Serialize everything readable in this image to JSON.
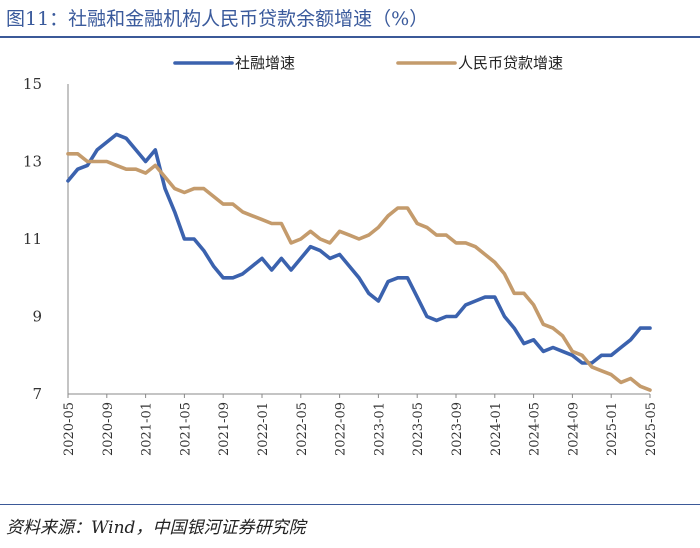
{
  "title": "图11：社融和金融机构人民币贷款余额增速（%）",
  "source": "资料来源：Wind，中国银河证券研究院",
  "chart_data": {
    "type": "line",
    "title": "",
    "xlabel": "",
    "ylabel": "",
    "ylim": [
      7,
      15
    ],
    "yticks": [
      7,
      9,
      11,
      13,
      15
    ],
    "grid": false,
    "legend": "top",
    "x": [
      "2020-05",
      "2020-06",
      "2020-07",
      "2020-08",
      "2020-09",
      "2020-10",
      "2020-11",
      "2020-12",
      "2021-01",
      "2021-02",
      "2021-03",
      "2021-04",
      "2021-05",
      "2021-06",
      "2021-07",
      "2021-08",
      "2021-09",
      "2021-10",
      "2021-11",
      "2021-12",
      "2022-01",
      "2022-02",
      "2022-03",
      "2022-04",
      "2022-05",
      "2022-06",
      "2022-07",
      "2022-08",
      "2022-09",
      "2022-10",
      "2022-11",
      "2022-12",
      "2023-01",
      "2023-02",
      "2023-03",
      "2023-04",
      "2023-05",
      "2023-06",
      "2023-07",
      "2023-08",
      "2023-09",
      "2023-10",
      "2023-11",
      "2023-12",
      "2024-01",
      "2024-02",
      "2024-03",
      "2024-04",
      "2024-05",
      "2024-06",
      "2024-07",
      "2024-08",
      "2024-09",
      "2024-10",
      "2024-11",
      "2024-12",
      "2025-01",
      "2025-02",
      "2025-03",
      "2025-04",
      "2025-05"
    ],
    "xtick_labels": [
      "2020-05",
      "2020-09",
      "2021-01",
      "2021-05",
      "2021-09",
      "2022-01",
      "2022-05",
      "2022-09",
      "2023-01",
      "2023-05",
      "2023-09",
      "2024-01",
      "2024-05",
      "2024-09",
      "2025-01",
      "2025-05"
    ],
    "series": [
      {
        "name": "社融增速",
        "color": "#3b62ae",
        "values": [
          12.5,
          12.8,
          12.9,
          13.3,
          13.5,
          13.7,
          13.6,
          13.3,
          13.0,
          13.3,
          12.3,
          11.7,
          11.0,
          11.0,
          10.7,
          10.3,
          10.0,
          10.0,
          10.1,
          10.3,
          10.5,
          10.2,
          10.5,
          10.2,
          10.5,
          10.8,
          10.7,
          10.5,
          10.6,
          10.3,
          10.0,
          9.6,
          9.4,
          9.9,
          10.0,
          10.0,
          9.5,
          9.0,
          8.9,
          9.0,
          9.0,
          9.3,
          9.4,
          9.5,
          9.5,
          9.0,
          8.7,
          8.3,
          8.4,
          8.1,
          8.2,
          8.1,
          8.0,
          7.8,
          7.8,
          8.0,
          8.0,
          8.2,
          8.4,
          8.7,
          8.7
        ]
      },
      {
        "name": "人民币贷款增速",
        "color": "#c49b6c",
        "values": [
          13.2,
          13.2,
          13.0,
          13.0,
          13.0,
          12.9,
          12.8,
          12.8,
          12.7,
          12.9,
          12.6,
          12.3,
          12.2,
          12.3,
          12.3,
          12.1,
          11.9,
          11.9,
          11.7,
          11.6,
          11.5,
          11.4,
          11.4,
          10.9,
          11.0,
          11.2,
          11.0,
          10.9,
          11.2,
          11.1,
          11.0,
          11.1,
          11.3,
          11.6,
          11.8,
          11.8,
          11.4,
          11.3,
          11.1,
          11.1,
          10.9,
          10.9,
          10.8,
          10.6,
          10.4,
          10.1,
          9.6,
          9.6,
          9.3,
          8.8,
          8.7,
          8.5,
          8.1,
          8.0,
          7.7,
          7.6,
          7.5,
          7.3,
          7.4,
          7.2,
          7.1
        ]
      }
    ]
  }
}
